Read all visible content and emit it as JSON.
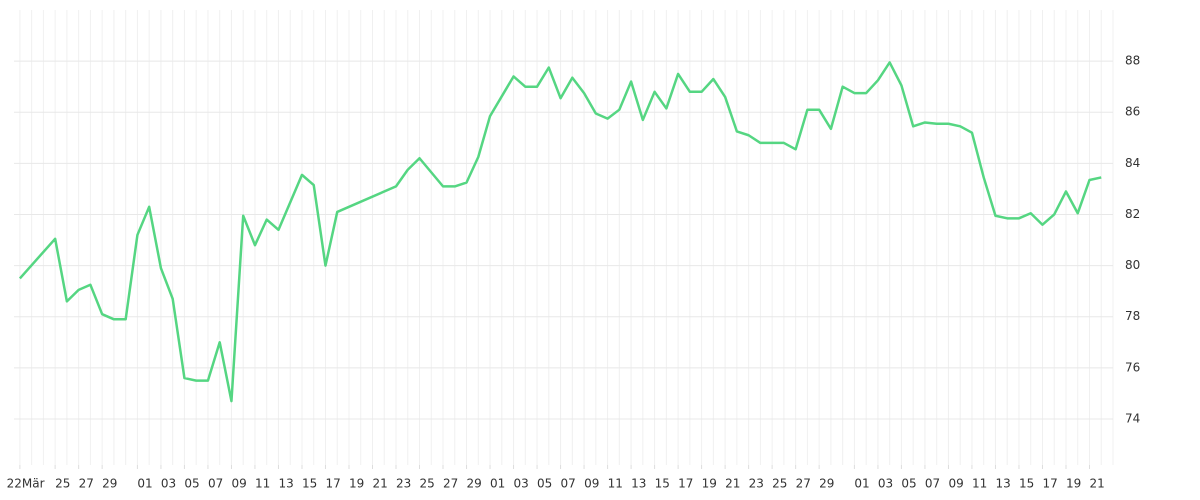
{
  "chart_data": {
    "type": "line",
    "color": "#55d682",
    "grid": true,
    "x_month_label": "Mär",
    "xlim": [
      -0.5,
      93
    ],
    "ylim": [
      72.2,
      90
    ],
    "yticks": [
      74,
      76,
      78,
      80,
      82,
      84,
      86,
      88
    ],
    "xticks": [
      {
        "value": 0,
        "label": "22"
      },
      {
        "value": 3,
        "label": "25"
      },
      {
        "value": 5,
        "label": "27"
      },
      {
        "value": 7,
        "label": "29"
      },
      {
        "value": 10,
        "label": "01"
      },
      {
        "value": 12,
        "label": "03"
      },
      {
        "value": 14,
        "label": "05"
      },
      {
        "value": 16,
        "label": "07"
      },
      {
        "value": 18,
        "label": "09"
      },
      {
        "value": 20,
        "label": "11"
      },
      {
        "value": 22,
        "label": "13"
      },
      {
        "value": 24,
        "label": "15"
      },
      {
        "value": 26,
        "label": "17"
      },
      {
        "value": 28,
        "label": "19"
      },
      {
        "value": 30,
        "label": "21"
      },
      {
        "value": 32,
        "label": "23"
      },
      {
        "value": 34,
        "label": "25"
      },
      {
        "value": 36,
        "label": "27"
      },
      {
        "value": 38,
        "label": "29"
      },
      {
        "value": 40,
        "label": "01"
      },
      {
        "value": 42,
        "label": "03"
      },
      {
        "value": 44,
        "label": "05"
      },
      {
        "value": 46,
        "label": "07"
      },
      {
        "value": 48,
        "label": "09"
      },
      {
        "value": 50,
        "label": "11"
      },
      {
        "value": 52,
        "label": "13"
      },
      {
        "value": 54,
        "label": "15"
      },
      {
        "value": 56,
        "label": "17"
      },
      {
        "value": 58,
        "label": "19"
      },
      {
        "value": 60,
        "label": "21"
      },
      {
        "value": 62,
        "label": "23"
      },
      {
        "value": 64,
        "label": "25"
      },
      {
        "value": 66,
        "label": "27"
      },
      {
        "value": 68,
        "label": "29"
      },
      {
        "value": 71,
        "label": "01"
      },
      {
        "value": 73,
        "label": "03"
      },
      {
        "value": 75,
        "label": "05"
      },
      {
        "value": 77,
        "label": "07"
      },
      {
        "value": 79,
        "label": "09"
      },
      {
        "value": 81,
        "label": "11"
      },
      {
        "value": 83,
        "label": "13"
      },
      {
        "value": 85,
        "label": "15"
      },
      {
        "value": 87,
        "label": "17"
      },
      {
        "value": 89,
        "label": "19"
      },
      {
        "value": 91,
        "label": "21"
      }
    ],
    "x": [
      0,
      3,
      4,
      5,
      6,
      7,
      8,
      9,
      10,
      11,
      12,
      13,
      14,
      15,
      16,
      17,
      18,
      19,
      20,
      21,
      22,
      24,
      25,
      26,
      27,
      32,
      33,
      34,
      36,
      37,
      38,
      39,
      40,
      42,
      43,
      44,
      45,
      46,
      47,
      48,
      49,
      50,
      51,
      52,
      53,
      54,
      55,
      56,
      57,
      58,
      59,
      60,
      61,
      62,
      63,
      65,
      66,
      67,
      68,
      69,
      70,
      71,
      72,
      73,
      74,
      75,
      76,
      77,
      78,
      79,
      80,
      81,
      82,
      83,
      84,
      85,
      86,
      87,
      88,
      89,
      90,
      91,
      92
    ],
    "values": [
      79.5,
      81.05,
      78.6,
      79.05,
      79.25,
      78.1,
      77.9,
      77.9,
      81.2,
      82.3,
      79.9,
      78.7,
      75.6,
      75.5,
      75.5,
      77.0,
      74.7,
      81.95,
      80.8,
      81.8,
      81.4,
      83.55,
      83.15,
      80.0,
      82.1,
      83.1,
      83.75,
      84.2,
      83.1,
      83.1,
      83.25,
      84.25,
      85.85,
      87.4,
      87.0,
      87.0,
      87.75,
      86.55,
      87.35,
      86.75,
      85.95,
      85.75,
      86.1,
      87.2,
      85.7,
      86.8,
      86.15,
      87.5,
      86.8,
      86.8,
      87.3,
      86.6,
      85.25,
      85.1,
      84.8,
      84.8,
      84.55,
      86.1,
      86.1,
      85.35,
      87.0,
      86.75,
      86.75,
      87.25,
      87.95,
      87.05,
      85.45,
      85.6,
      85.55,
      85.55,
      85.45,
      85.2,
      83.45,
      81.95,
      81.85,
      81.85,
      82.05,
      81.6,
      82.0,
      82.9,
      82.05,
      83.35,
      83.45
    ]
  }
}
